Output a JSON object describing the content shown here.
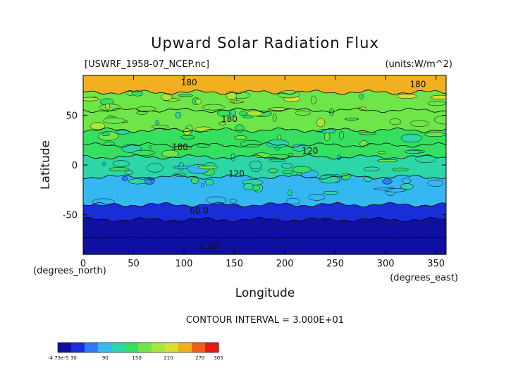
{
  "chart_data": {
    "type": "heatmap",
    "title": "Upward Solar Radiation Flux",
    "subtitle_left": "[USWRF_1958-07_NCEP.nc]",
    "subtitle_right": "(units:W/m^2)",
    "xlabel": "Longitude",
    "ylabel": "Latitude",
    "x_unit_label": "(degrees_east)",
    "y_unit_label": "(degrees_north)",
    "xlim": [
      0,
      360
    ],
    "ylim": [
      -90,
      90
    ],
    "x_ticks": [
      0,
      50,
      100,
      150,
      200,
      250,
      300,
      350
    ],
    "y_ticks": [
      -50,
      0,
      50
    ],
    "contour_interval_text": "CONTOUR INTERVAL = 3.000E+01",
    "contour_labels": [
      {
        "text": "180",
        "lon": 105,
        "lat": 83
      },
      {
        "text": "180",
        "lon": 332,
        "lat": 81
      },
      {
        "text": "180",
        "lon": 145,
        "lat": 46
      },
      {
        "text": "180",
        "lon": 96,
        "lat": 18
      },
      {
        "text": "120",
        "lon": 225,
        "lat": 14
      },
      {
        "text": "120",
        "lon": 152,
        "lat": -9
      },
      {
        "text": "60.0",
        "lon": 115,
        "lat": -46
      },
      {
        "text": "0.00",
        "lon": 125,
        "lat": -82
      }
    ],
    "latitude_bands": [
      {
        "lat_from": 90,
        "lat_to": 73,
        "value": 250
      },
      {
        "lat_from": 73,
        "lat_to": 55,
        "value": 170
      },
      {
        "lat_from": 55,
        "lat_to": 35,
        "value": 160
      },
      {
        "lat_from": 35,
        "lat_to": 20,
        "value": 145
      },
      {
        "lat_from": 20,
        "lat_to": 8,
        "value": 150
      },
      {
        "lat_from": 8,
        "lat_to": -12,
        "value": 118
      },
      {
        "lat_from": -12,
        "lat_to": -40,
        "value": 95
      },
      {
        "lat_from": -40,
        "lat_to": -55,
        "value": 45
      },
      {
        "lat_from": -55,
        "lat_to": -73,
        "value": 15
      },
      {
        "lat_from": -73,
        "lat_to": -90,
        "value": 0
      }
    ],
    "colorbar": {
      "min_label": "-4.73e-5",
      "tick_labels": [
        "30",
        "90",
        "150",
        "210",
        "270",
        "305"
      ],
      "tick_values": [
        30,
        90,
        150,
        210,
        270,
        305
      ],
      "range": [
        0,
        305
      ],
      "colors": [
        "#1010a0",
        "#1a2ed8",
        "#2f7bff",
        "#35b8f2",
        "#2dd6a6",
        "#35e060",
        "#6ee64a",
        "#a8e63a",
        "#d8e030",
        "#f2b020",
        "#f06018",
        "#e81818"
      ]
    }
  }
}
